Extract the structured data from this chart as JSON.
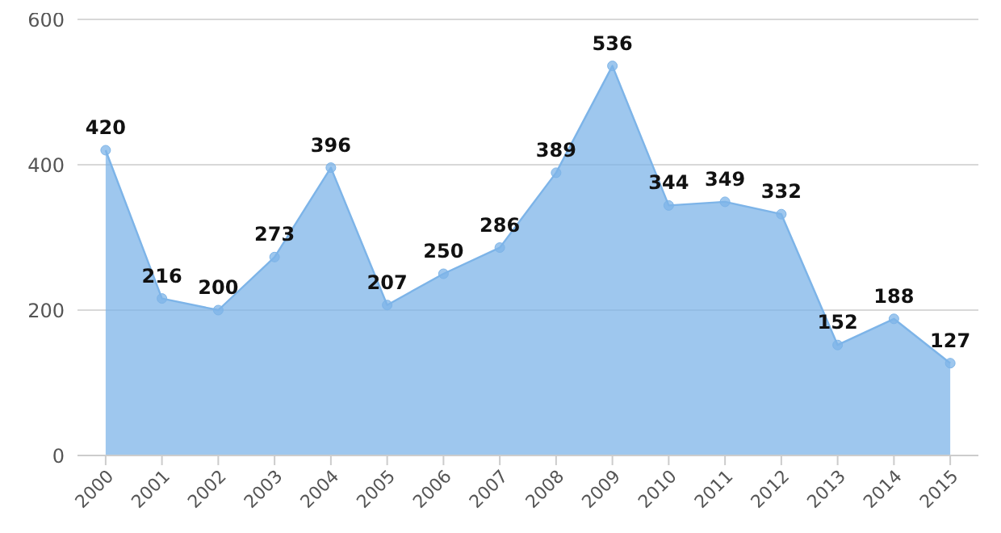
{
  "chart_data": {
    "type": "area",
    "categories": [
      "2000",
      "2001",
      "2002",
      "2003",
      "2004",
      "2005",
      "2006",
      "2007",
      "2008",
      "2009",
      "2010",
      "2011",
      "2012",
      "2013",
      "2014",
      "2015"
    ],
    "series": [
      {
        "color": "#7db4e8",
        "values": [
          420,
          216,
          200,
          273,
          396,
          207,
          250,
          286,
          389,
          536,
          344,
          349,
          332,
          152,
          188,
          127
        ]
      }
    ],
    "ylim": [
      0,
      600
    ],
    "yticks": [
      0,
      200,
      400,
      600
    ],
    "grid": "y",
    "marker": "circle",
    "data_labels": true,
    "legend": false
  }
}
